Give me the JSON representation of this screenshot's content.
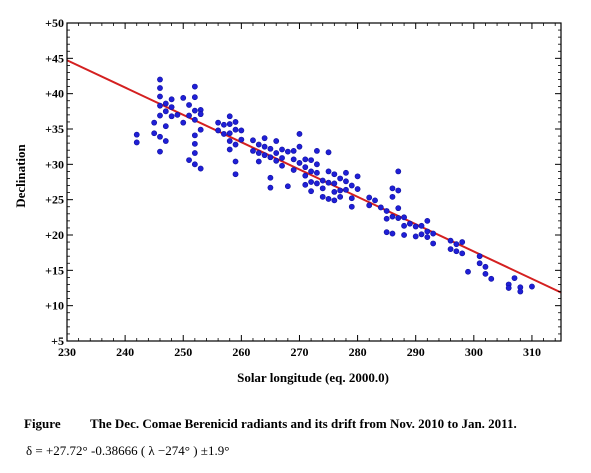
{
  "chart_data": {
    "type": "scatter",
    "title": "",
    "xlabel": "Solar longitude (eq. 2000.0)",
    "ylabel": "Declination",
    "xlim": [
      230,
      315
    ],
    "ylim": [
      5,
      50
    ],
    "xticks": [
      230,
      240,
      250,
      260,
      270,
      280,
      290,
      300,
      310
    ],
    "yticks": [
      5,
      10,
      15,
      20,
      25,
      30,
      35,
      40,
      45,
      50
    ],
    "ytick_labels": [
      "+5",
      "+10",
      "+15",
      "+20",
      "+25",
      "+30",
      "+35",
      "+40",
      "+45",
      "+50"
    ],
    "grid": false,
    "colors": {
      "points": "#1f1fd6",
      "fit_line": "#d42020"
    },
    "fit_line": {
      "slope": -0.38666,
      "intercept": 27.72,
      "x0": 274,
      "x_range": [
        230,
        315
      ]
    },
    "points": [
      [
        242,
        34.2
      ],
      [
        242,
        33.1
      ],
      [
        245,
        35.9
      ],
      [
        245,
        34.4
      ],
      [
        246,
        42.0
      ],
      [
        246,
        40.8
      ],
      [
        246,
        39.6
      ],
      [
        246,
        38.3
      ],
      [
        246,
        36.9
      ],
      [
        246,
        33.9
      ],
      [
        246,
        31.8
      ],
      [
        247,
        38.6
      ],
      [
        247,
        37.5
      ],
      [
        247,
        35.4
      ],
      [
        247,
        33.3
      ],
      [
        248,
        39.2
      ],
      [
        248,
        38.1
      ],
      [
        248,
        36.8
      ],
      [
        249,
        37.0
      ],
      [
        250,
        39.4
      ],
      [
        250,
        35.9
      ],
      [
        251,
        38.4
      ],
      [
        251,
        36.9
      ],
      [
        251,
        30.6
      ],
      [
        252,
        41.0
      ],
      [
        252,
        39.5
      ],
      [
        252,
        37.6
      ],
      [
        252,
        36.3
      ],
      [
        252,
        34.1
      ],
      [
        252,
        32.9
      ],
      [
        252,
        31.6
      ],
      [
        252,
        30.0
      ],
      [
        253,
        37.7
      ],
      [
        253,
        37.1
      ],
      [
        253,
        34.9
      ],
      [
        253,
        29.4
      ],
      [
        256,
        35.9
      ],
      [
        256,
        34.8
      ],
      [
        257,
        35.6
      ],
      [
        257,
        34.3
      ],
      [
        258,
        36.8
      ],
      [
        258,
        35.7
      ],
      [
        258,
        34.4
      ],
      [
        258,
        33.3
      ],
      [
        258,
        32.1
      ],
      [
        259,
        36.0
      ],
      [
        259,
        34.9
      ],
      [
        259,
        32.8
      ],
      [
        259,
        30.4
      ],
      [
        259,
        28.6
      ],
      [
        260,
        34.8
      ],
      [
        260,
        33.5
      ],
      [
        262,
        33.4
      ],
      [
        262,
        31.9
      ],
      [
        263,
        32.8
      ],
      [
        263,
        31.6
      ],
      [
        263,
        30.4
      ],
      [
        264,
        33.7
      ],
      [
        264,
        32.5
      ],
      [
        264,
        31.3
      ],
      [
        265,
        32.2
      ],
      [
        265,
        31.0
      ],
      [
        265,
        28.1
      ],
      [
        265,
        26.7
      ],
      [
        266,
        33.3
      ],
      [
        266,
        31.6
      ],
      [
        266,
        30.5
      ],
      [
        267,
        32.1
      ],
      [
        267,
        30.9
      ],
      [
        267,
        29.8
      ],
      [
        268,
        31.8
      ],
      [
        268,
        26.9
      ],
      [
        269,
        31.9
      ],
      [
        269,
        30.7
      ],
      [
        269,
        29.2
      ],
      [
        270,
        34.3
      ],
      [
        270,
        32.5
      ],
      [
        270,
        30.2
      ],
      [
        271,
        30.7
      ],
      [
        271,
        29.6
      ],
      [
        271,
        28.4
      ],
      [
        271,
        27.1
      ],
      [
        272,
        30.6
      ],
      [
        272,
        29.0
      ],
      [
        272,
        27.5
      ],
      [
        272,
        26.2
      ],
      [
        273,
        31.9
      ],
      [
        273,
        30.0
      ],
      [
        273,
        28.8
      ],
      [
        273,
        27.3
      ],
      [
        274,
        27.7
      ],
      [
        274,
        26.6
      ],
      [
        274,
        25.4
      ],
      [
        275,
        31.7
      ],
      [
        275,
        29.0
      ],
      [
        275,
        27.4
      ],
      [
        275,
        25.1
      ],
      [
        276,
        28.6
      ],
      [
        276,
        27.3
      ],
      [
        276,
        26.1
      ],
      [
        276,
        24.9
      ],
      [
        277,
        28.0
      ],
      [
        277,
        26.3
      ],
      [
        277,
        25.4
      ],
      [
        278,
        28.8
      ],
      [
        278,
        27.6
      ],
      [
        278,
        26.4
      ],
      [
        279,
        27.0
      ],
      [
        279,
        25.2
      ],
      [
        279,
        24.0
      ],
      [
        280,
        28.3
      ],
      [
        280,
        26.5
      ],
      [
        282,
        25.3
      ],
      [
        282,
        24.2
      ],
      [
        283,
        24.9
      ],
      [
        284,
        23.9
      ],
      [
        285,
        23.4
      ],
      [
        285,
        22.3
      ],
      [
        285,
        20.4
      ],
      [
        286,
        26.6
      ],
      [
        286,
        25.4
      ],
      [
        286,
        22.6
      ],
      [
        286,
        20.2
      ],
      [
        287,
        29.0
      ],
      [
        287,
        26.3
      ],
      [
        287,
        23.8
      ],
      [
        287,
        22.4
      ],
      [
        288,
        22.5
      ],
      [
        288,
        21.3
      ],
      [
        288,
        20.0
      ],
      [
        289,
        21.6
      ],
      [
        290,
        21.2
      ],
      [
        290,
        19.8
      ],
      [
        291,
        21.3
      ],
      [
        291,
        20.1
      ],
      [
        292,
        22.0
      ],
      [
        292,
        20.5
      ],
      [
        292,
        19.7
      ],
      [
        293,
        20.2
      ],
      [
        293,
        18.8
      ],
      [
        296,
        19.2
      ],
      [
        296,
        18.0
      ],
      [
        297,
        18.7
      ],
      [
        297,
        17.7
      ],
      [
        298,
        19.0
      ],
      [
        298,
        17.4
      ],
      [
        299,
        14.8
      ],
      [
        301,
        17.0
      ],
      [
        301,
        16.0
      ],
      [
        302,
        15.5
      ],
      [
        302,
        14.5
      ],
      [
        303,
        13.8
      ],
      [
        306,
        13.0
      ],
      [
        306,
        12.5
      ],
      [
        307,
        13.9
      ],
      [
        308,
        12.6
      ],
      [
        308,
        12.0
      ],
      [
        310,
        12.7
      ]
    ]
  },
  "caption": {
    "label": "Figure",
    "text": "The Dec. Comae Berenicid radiants and its drift from Nov. 2010 to Jan. 2011."
  },
  "formula": {
    "text": "δ = +27.72° -0.38666 ( λ −274° ) ±1.9°"
  }
}
